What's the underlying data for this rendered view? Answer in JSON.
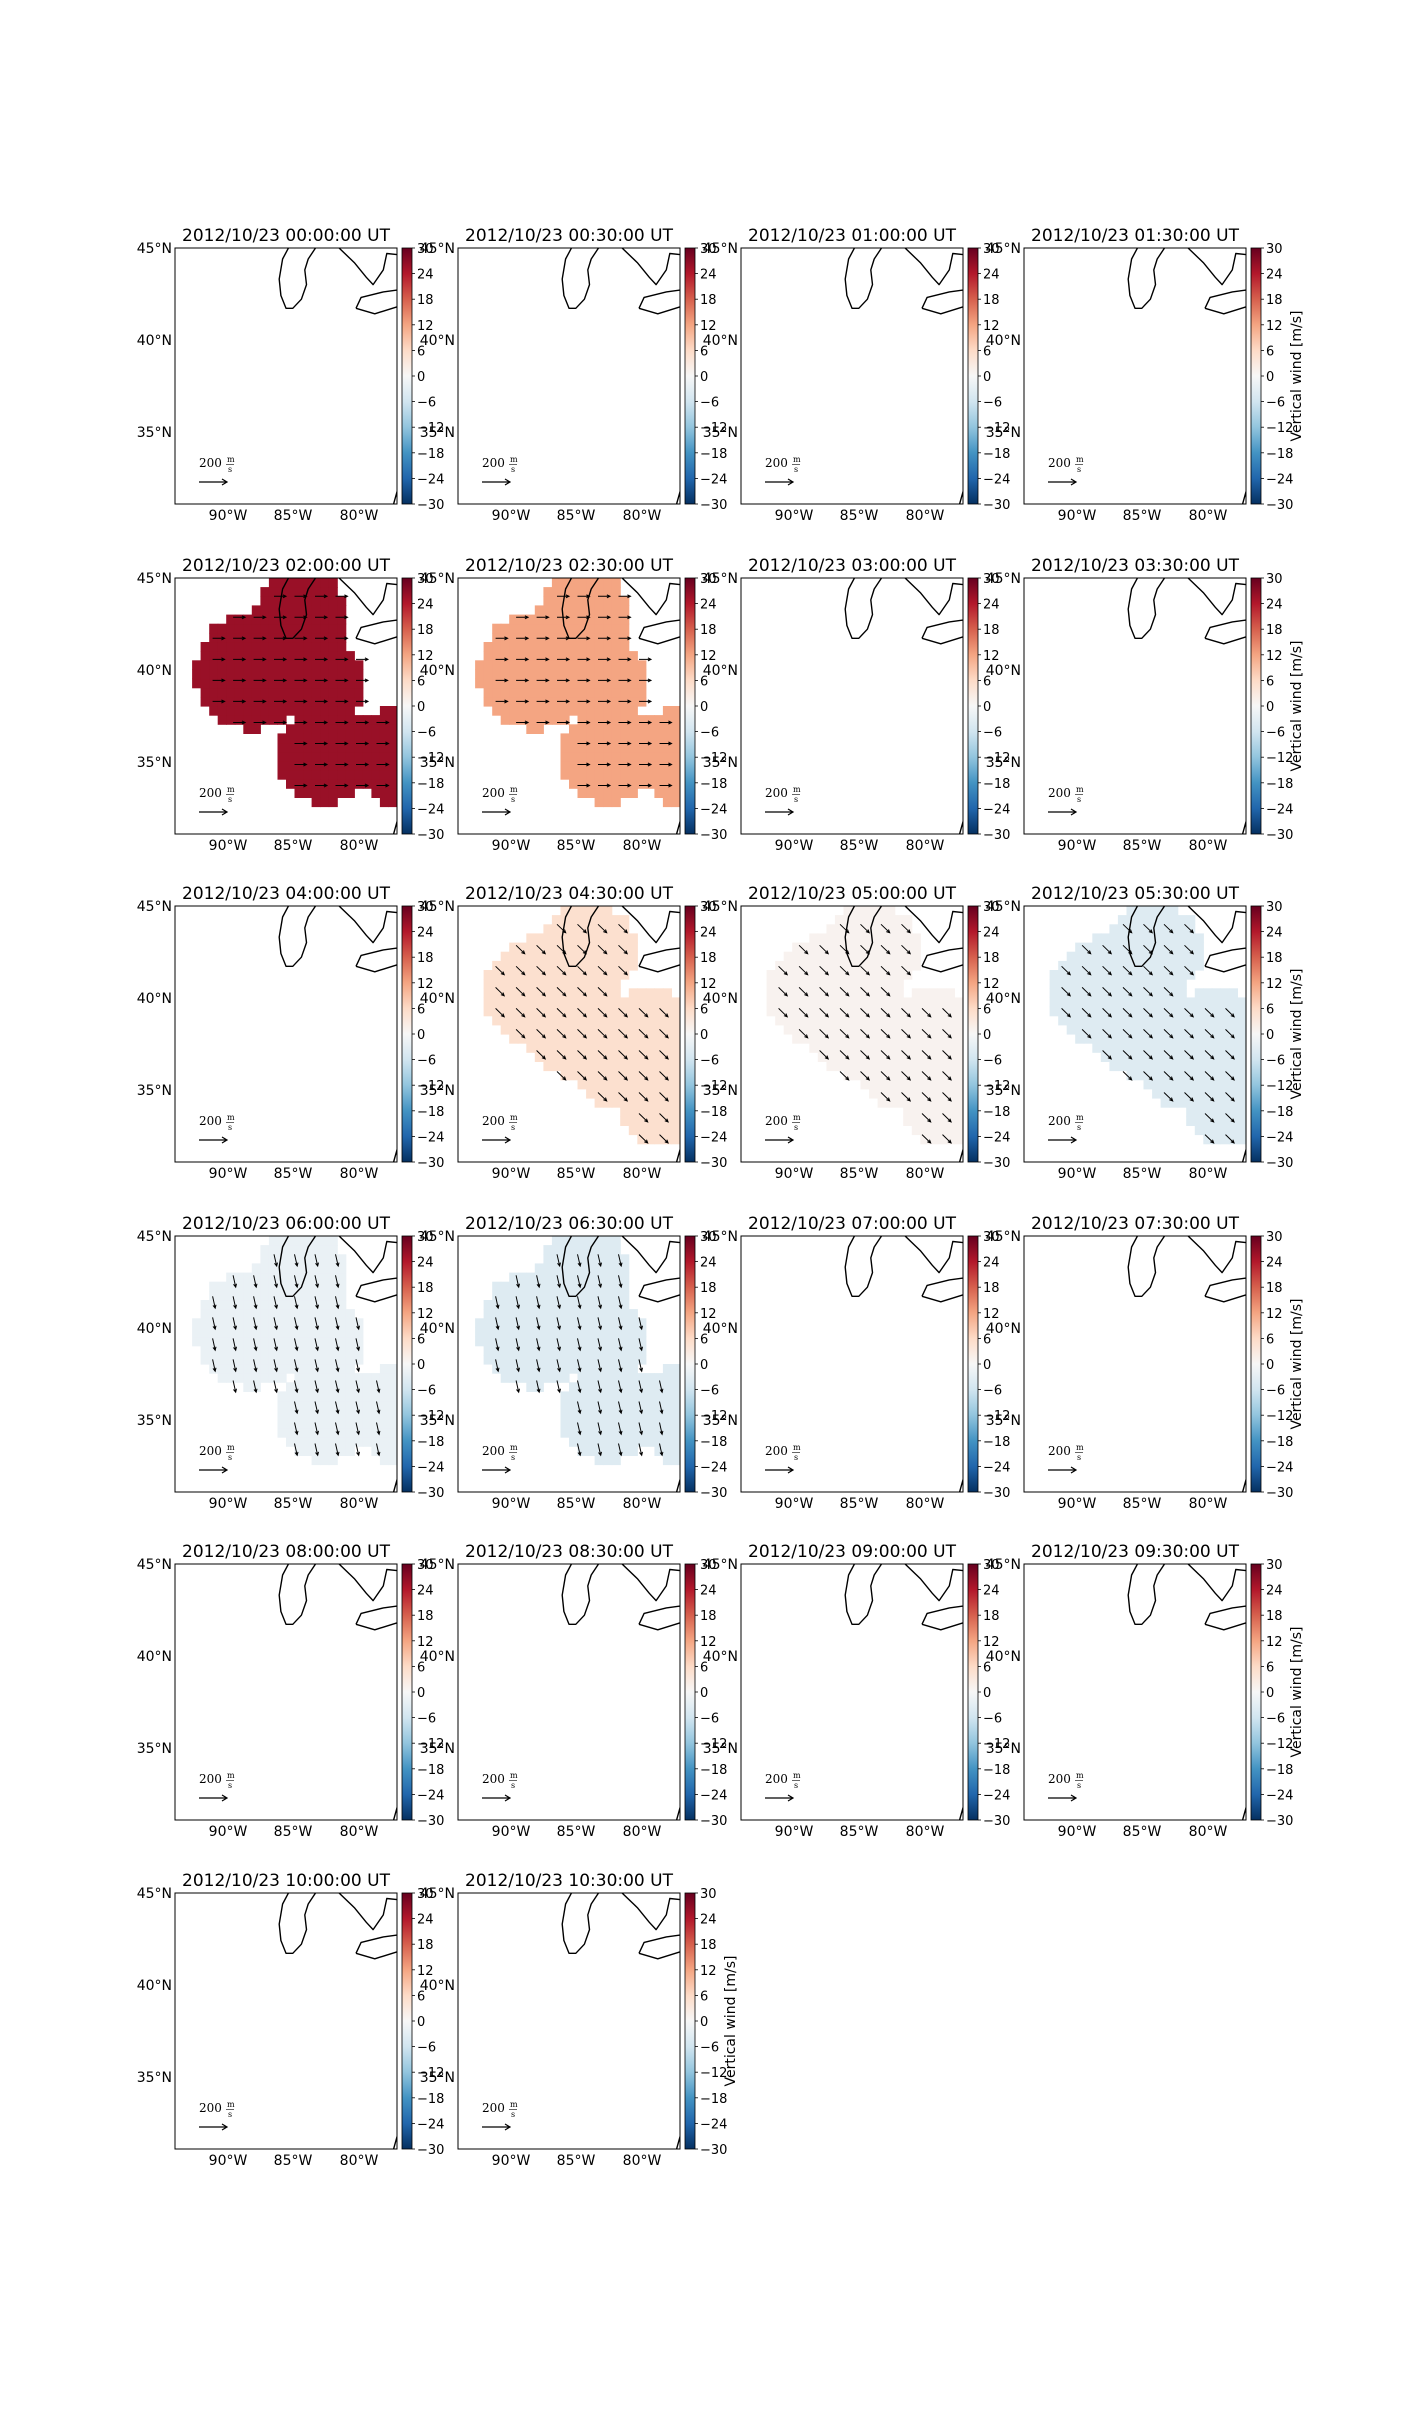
{
  "figure": {
    "colorbar_label": "Vertical wind [m/s]",
    "colorbar_ticks": [
      "30",
      "24",
      "18",
      "12",
      "6",
      "0",
      "−6",
      "−12",
      "−18",
      "−24",
      "−30"
    ],
    "lat_ticks": [
      "45°N",
      "40°N",
      "35°N"
    ],
    "lon_ticks": [
      "90°W",
      "85°W",
      "80°W"
    ],
    "scale_label_value": "200",
    "scale_label_unit_num": "m",
    "scale_label_unit_den": "s",
    "colormap": "RdBu_r",
    "colors": {
      "pos_max": "#67001f",
      "pos": "#c43c3c",
      "zero": "#f7f7f7",
      "neg": "#2166ac",
      "neg_max": "#053061"
    }
  },
  "chart_data": [
    {
      "type": "heatmap",
      "title": "2012/10/23 00:00:00 UT",
      "clim": [
        -30,
        30
      ],
      "region": null,
      "value": 0,
      "arrows": null
    },
    {
      "type": "heatmap",
      "title": "2012/10/23 00:30:00 UT",
      "clim": [
        -30,
        30
      ],
      "region": null,
      "value": 0,
      "arrows": null
    },
    {
      "type": "heatmap",
      "title": "2012/10/23 01:00:00 UT",
      "clim": [
        -30,
        30
      ],
      "region": null,
      "value": 0,
      "arrows": null
    },
    {
      "type": "heatmap",
      "title": "2012/10/23 01:30:00 UT",
      "clim": [
        -30,
        30
      ],
      "region": null,
      "value": 0,
      "arrows": null
    },
    {
      "type": "heatmap",
      "title": "2012/10/23 02:00:00 UT",
      "clim": [
        -30,
        30
      ],
      "region": "trefoil",
      "value": 26,
      "arrows": "east"
    },
    {
      "type": "heatmap",
      "title": "2012/10/23 02:30:00 UT",
      "clim": [
        -30,
        30
      ],
      "region": "trefoil",
      "value": 12,
      "arrows": "east"
    },
    {
      "type": "heatmap",
      "title": "2012/10/23 03:00:00 UT",
      "clim": [
        -30,
        30
      ],
      "region": null,
      "value": 0,
      "arrows": null
    },
    {
      "type": "heatmap",
      "title": "2012/10/23 03:30:00 UT",
      "clim": [
        -30,
        30
      ],
      "region": null,
      "value": 0,
      "arrows": null
    },
    {
      "type": "heatmap",
      "title": "2012/10/23 04:00:00 UT",
      "clim": [
        -30,
        30
      ],
      "region": null,
      "value": 0,
      "arrows": null
    },
    {
      "type": "heatmap",
      "title": "2012/10/23 04:30:00 UT",
      "clim": [
        -30,
        30
      ],
      "region": "band",
      "value": 5,
      "arrows": "southeast"
    },
    {
      "type": "heatmap",
      "title": "2012/10/23 05:00:00 UT",
      "clim": [
        -30,
        30
      ],
      "region": "band",
      "value": 1,
      "arrows": "southeast"
    },
    {
      "type": "heatmap",
      "title": "2012/10/23 05:30:00 UT",
      "clim": [
        -30,
        30
      ],
      "region": "band",
      "value": -4,
      "arrows": "southeast"
    },
    {
      "type": "heatmap",
      "title": "2012/10/23 06:00:00 UT",
      "clim": [
        -30,
        30
      ],
      "region": "trefoil",
      "value": -2,
      "arrows": "south"
    },
    {
      "type": "heatmap",
      "title": "2012/10/23 06:30:00 UT",
      "clim": [
        -30,
        30
      ],
      "region": "trefoil",
      "value": -4,
      "arrows": "south"
    },
    {
      "type": "heatmap",
      "title": "2012/10/23 07:00:00 UT",
      "clim": [
        -30,
        30
      ],
      "region": null,
      "value": 0,
      "arrows": null
    },
    {
      "type": "heatmap",
      "title": "2012/10/23 07:30:00 UT",
      "clim": [
        -30,
        30
      ],
      "region": null,
      "value": 0,
      "arrows": null
    },
    {
      "type": "heatmap",
      "title": "2012/10/23 08:00:00 UT",
      "clim": [
        -30,
        30
      ],
      "region": null,
      "value": 0,
      "arrows": null
    },
    {
      "type": "heatmap",
      "title": "2012/10/23 08:30:00 UT",
      "clim": [
        -30,
        30
      ],
      "region": null,
      "value": 0,
      "arrows": null
    },
    {
      "type": "heatmap",
      "title": "2012/10/23 09:00:00 UT",
      "clim": [
        -30,
        30
      ],
      "region": null,
      "value": 0,
      "arrows": null
    },
    {
      "type": "heatmap",
      "title": "2012/10/23 09:30:00 UT",
      "clim": [
        -30,
        30
      ],
      "region": null,
      "value": 0,
      "arrows": null
    },
    {
      "type": "heatmap",
      "title": "2012/10/23 10:00:00 UT",
      "clim": [
        -30,
        30
      ],
      "region": null,
      "value": 0,
      "arrows": null
    },
    {
      "type": "heatmap",
      "title": "2012/10/23 10:30:00 UT",
      "clim": [
        -30,
        30
      ],
      "region": null,
      "value": 0,
      "arrows": null
    }
  ]
}
